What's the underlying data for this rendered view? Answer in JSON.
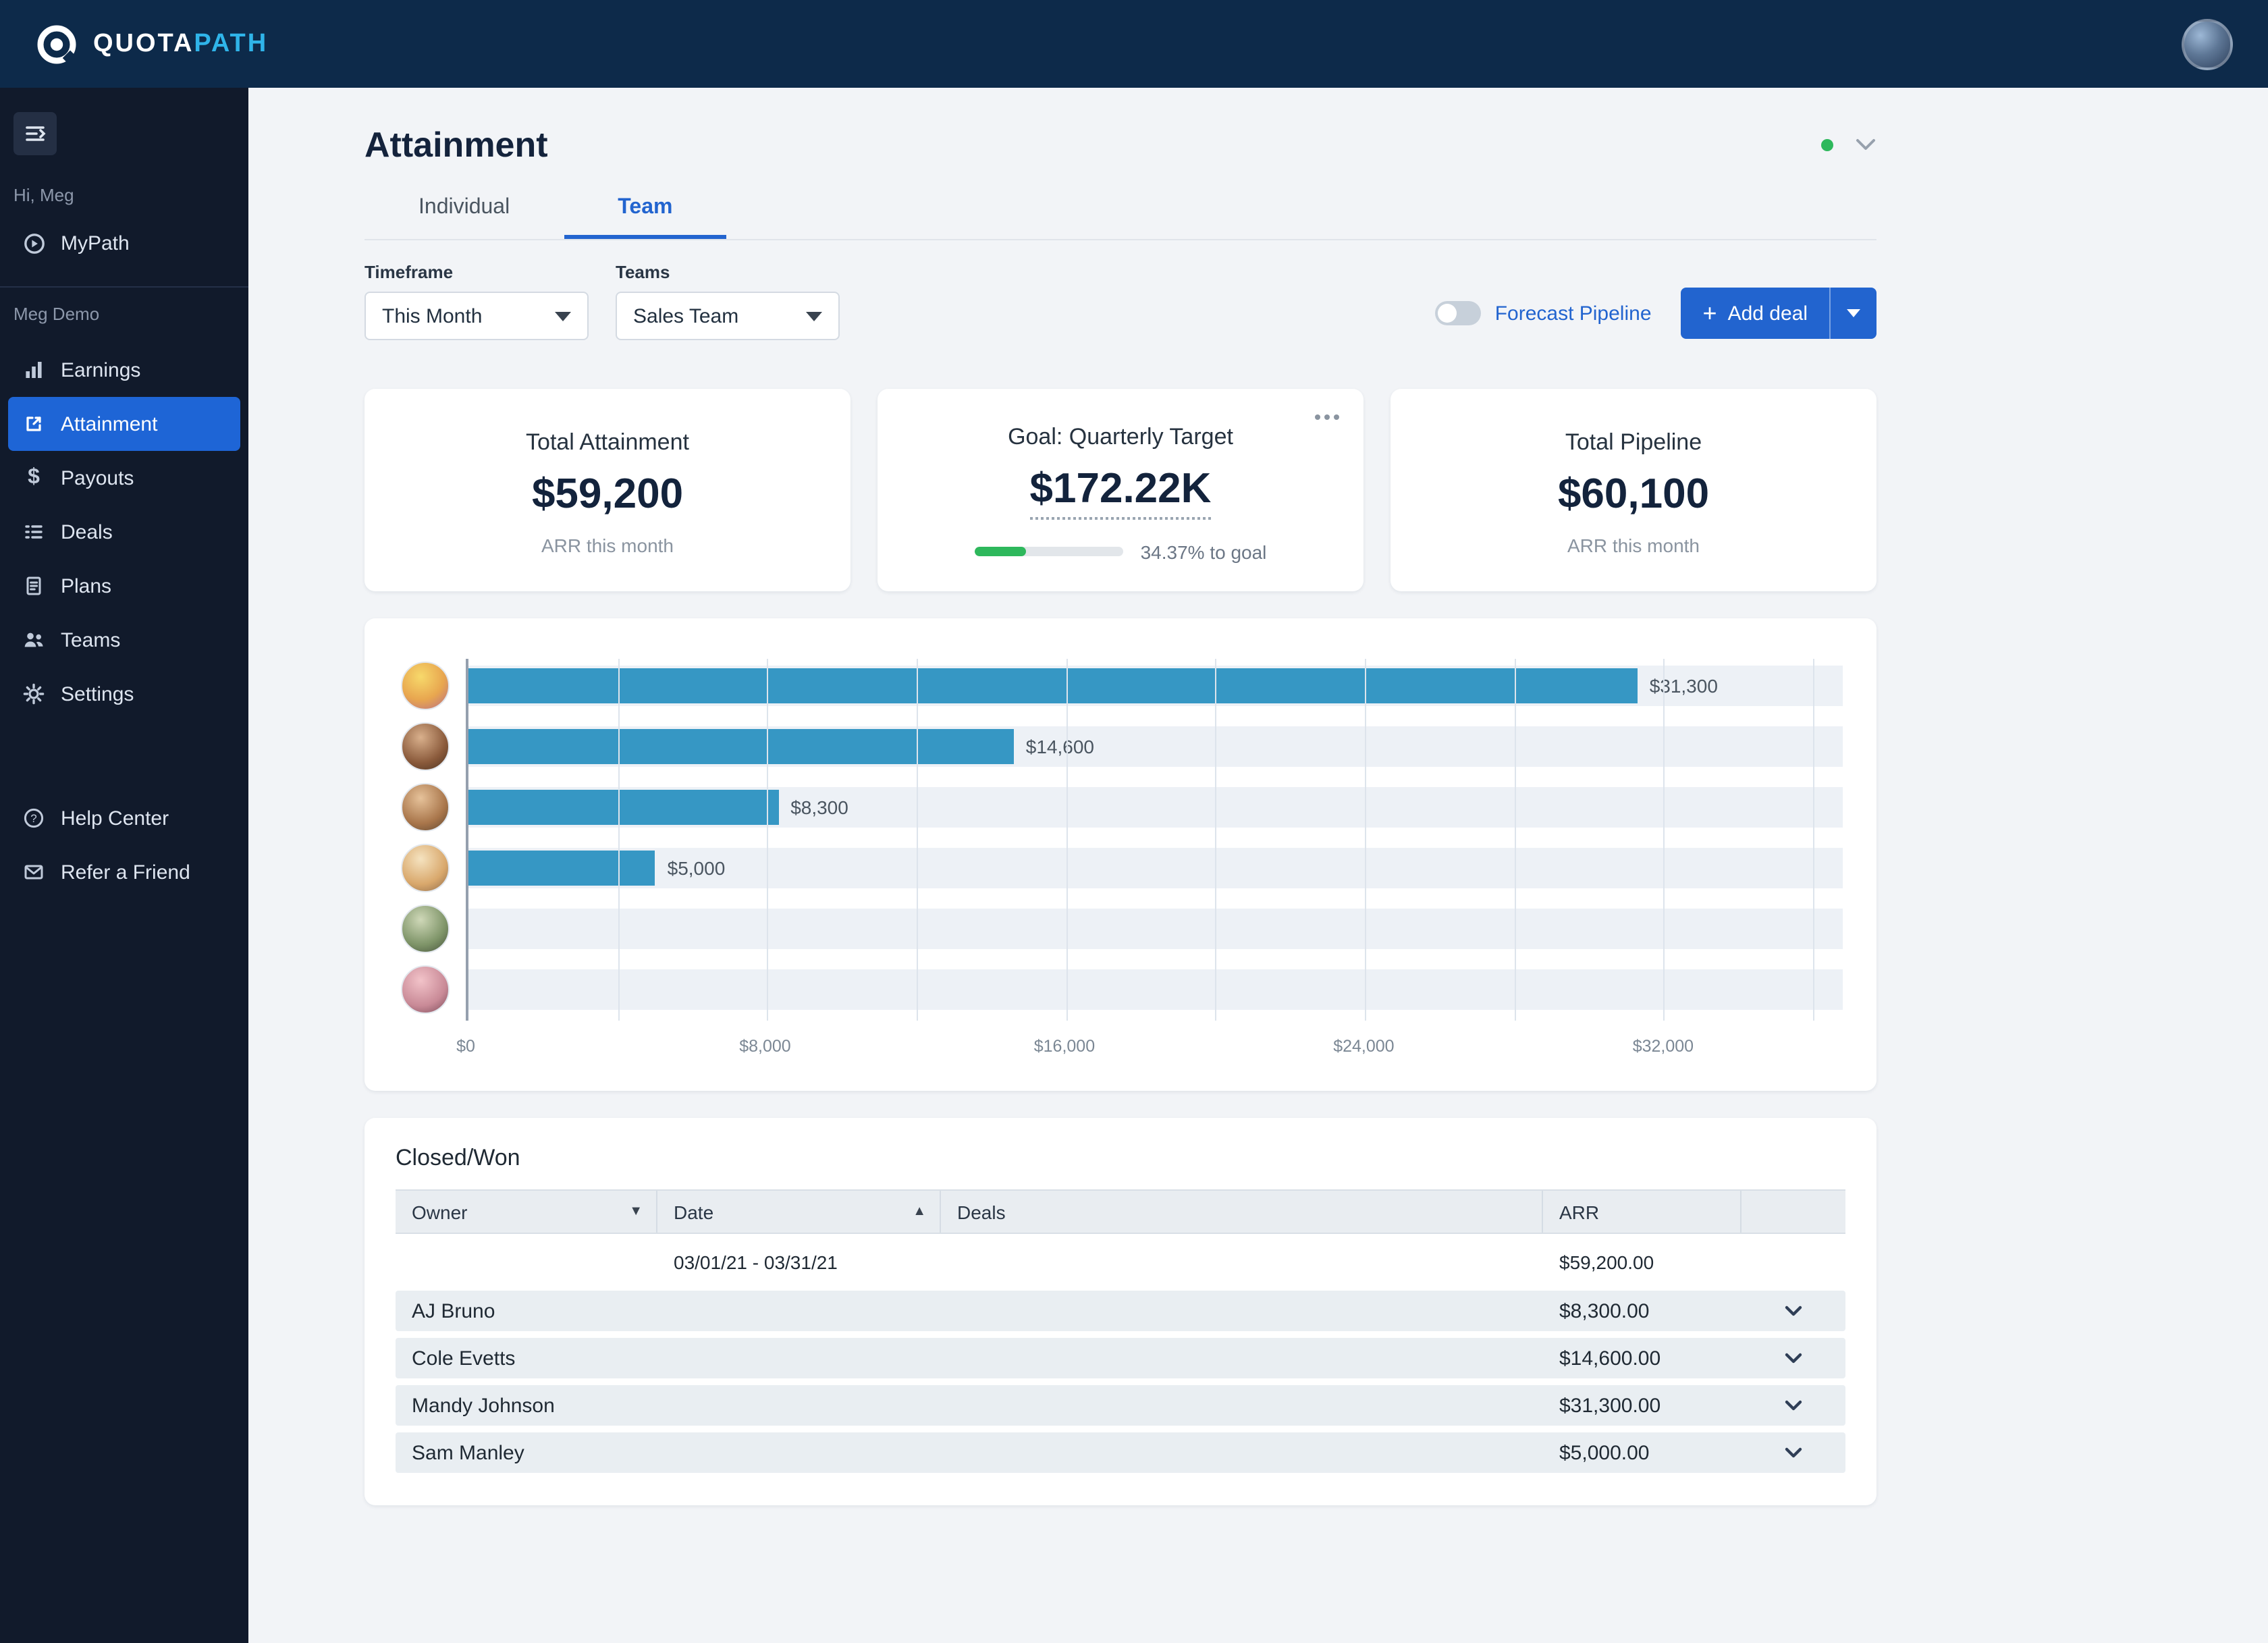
{
  "brand": {
    "name_primary": "QUOTA",
    "name_accent": "PATH"
  },
  "colors": {
    "accent": "#2264cf",
    "green": "#2eb85c",
    "bar": "#3697c4",
    "navy": "#0d2a4a"
  },
  "sidebar": {
    "greeting": "Hi, Meg",
    "mypath_label": "MyPath",
    "section_label": "Meg Demo",
    "items": [
      {
        "label": "Earnings"
      },
      {
        "label": "Attainment",
        "active": true
      },
      {
        "label": "Payouts"
      },
      {
        "label": "Deals"
      },
      {
        "label": "Plans"
      },
      {
        "label": "Teams"
      },
      {
        "label": "Settings"
      }
    ],
    "footer_items": [
      {
        "label": "Help Center"
      },
      {
        "label": "Refer a Friend"
      }
    ]
  },
  "header": {
    "title": "Attainment"
  },
  "tabs": [
    {
      "label": "Individual"
    },
    {
      "label": "Team",
      "active": true
    }
  ],
  "filters": {
    "timeframe_label": "Timeframe",
    "timeframe_value": "This Month",
    "teams_label": "Teams",
    "teams_value": "Sales Team",
    "forecast_toggle_label": "Forecast Pipeline",
    "forecast_toggle_on": false,
    "add_deal_label": "Add deal",
    "add_deal_plus": "+"
  },
  "stats": {
    "attainment": {
      "title": "Total Attainment",
      "value": "$59,200",
      "subtitle": "ARR this month"
    },
    "goal": {
      "title": "Goal: Quarterly Target",
      "value": "$172.22K",
      "progress_pct": 34.37,
      "progress_label": "34.37% to goal"
    },
    "pipeline": {
      "title": "Total Pipeline",
      "value": "$60,100",
      "subtitle": "ARR this month"
    }
  },
  "chart_data": {
    "type": "bar",
    "orientation": "horizontal",
    "values": [
      31300,
      14600,
      8300,
      5000,
      0,
      0
    ],
    "bar_labels": [
      "$31,300",
      "$14,600",
      "$8,300",
      "$5,000",
      "",
      ""
    ],
    "x_tick_values": [
      0,
      8000,
      16000,
      24000,
      32000
    ],
    "x_tick_labels": [
      "$0",
      "$8,000",
      "$16,000",
      "$24,000",
      "$32,000"
    ],
    "xlim": [
      0,
      36800
    ],
    "gridline_step": 4000,
    "bar_color": "#3697c4",
    "rows": 6
  },
  "table": {
    "title": "Closed/Won",
    "columns": [
      "Owner",
      "Date",
      "Deals",
      "ARR"
    ],
    "sort_icons": {
      "owner": "▼",
      "date": "▲"
    },
    "summary": {
      "date_range": "03/01/21 - 03/31/21",
      "arr_total": "$59,200.00"
    },
    "rows": [
      {
        "owner": "AJ Bruno",
        "arr": "$8,300.00"
      },
      {
        "owner": "Cole Evetts",
        "arr": "$14,600.00"
      },
      {
        "owner": "Mandy Johnson",
        "arr": "$31,300.00"
      },
      {
        "owner": "Sam Manley",
        "arr": "$5,000.00"
      }
    ]
  }
}
